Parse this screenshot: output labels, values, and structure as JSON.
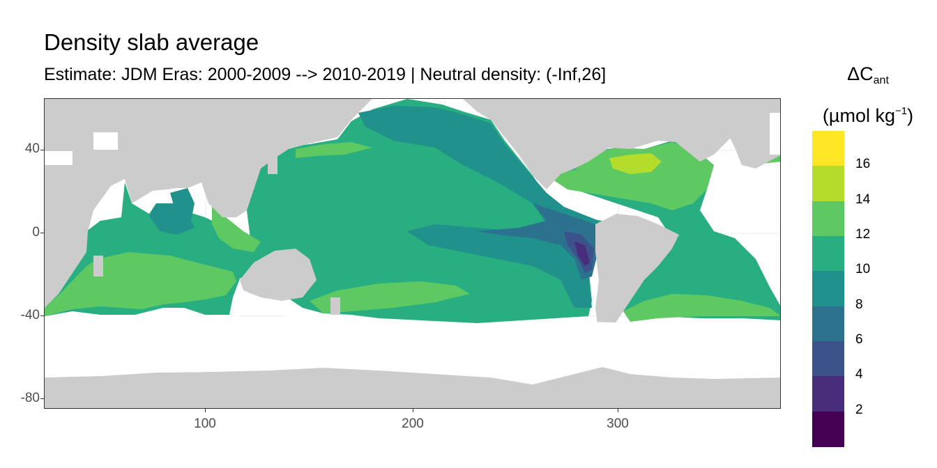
{
  "title": "Density slab average",
  "subtitle": "Estimate: JDM Eras: 2000-2009 --> 2010-2019 | Neutral density: (-Inf,26]",
  "axes": {
    "y_ticks": [
      {
        "value": 40,
        "label": "40"
      },
      {
        "value": 0,
        "label": "0"
      },
      {
        "value": -40,
        "label": "-40"
      },
      {
        "value": -80,
        "label": "-80"
      }
    ],
    "x_ticks": [
      {
        "value": 100,
        "label": "100"
      },
      {
        "value": 200,
        "label": "200"
      },
      {
        "value": 300,
        "label": "300"
      }
    ],
    "xlim": [
      20,
      380
    ],
    "ylim": [
      -85,
      65
    ],
    "grid": true
  },
  "legend": {
    "title_main": "ΔC",
    "title_sub": "ant",
    "unit_main": "(µmol kg",
    "unit_sup": "−1",
    "unit_close": ")",
    "placement": "right",
    "bins": [
      {
        "upper": 18,
        "color": "#FDE725",
        "label": "16"
      },
      {
        "upper": 16,
        "color": "#B3DC2B",
        "label": "14"
      },
      {
        "upper": 14,
        "color": "#5EC962",
        "label": "12"
      },
      {
        "upper": 12,
        "color": "#28AE80",
        "label": "10"
      },
      {
        "upper": 10,
        "color": "#21918C",
        "label": "8"
      },
      {
        "upper": 8,
        "color": "#2C728E",
        "label": "6"
      },
      {
        "upper": 6,
        "color": "#3B528B",
        "label": "4"
      },
      {
        "upper": 4,
        "color": "#472D7B",
        "label": "2"
      },
      {
        "upper": 2,
        "color": "#440154",
        "label": ""
      }
    ]
  },
  "colors": {
    "land": "#CCCCCC",
    "no_data": "#FFFFFF",
    "grid": "#EBEBEB"
  }
}
